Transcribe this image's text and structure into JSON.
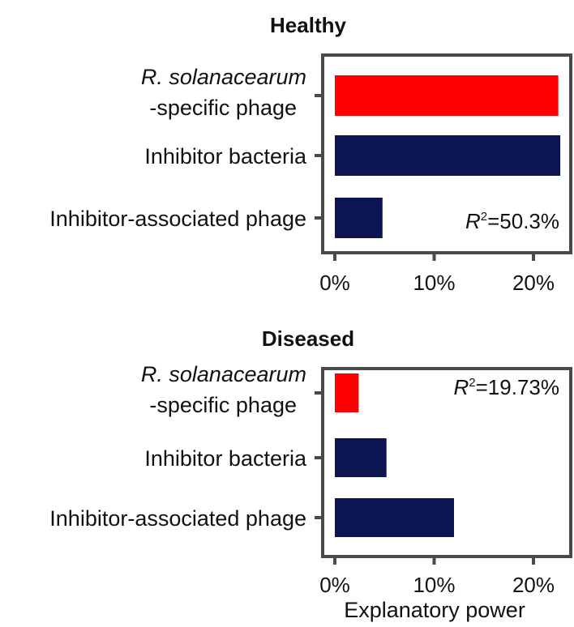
{
  "chart_data": [
    {
      "type": "bar",
      "orientation": "horizontal",
      "title": "Healthy",
      "categories": [
        {
          "line1": "R. solanacearum",
          "line2": "-specific phage",
          "italic_line1": true
        },
        {
          "line1": "Inhibitor bacteria",
          "line2": "",
          "italic_line1": false
        },
        {
          "line1": "Inhibitor-associated phage",
          "line2": "",
          "italic_line1": false
        }
      ],
      "values": [
        22.5,
        22.7,
        4.8
      ],
      "colors": [
        "#ff0000",
        "#0d1452",
        "#0d1452"
      ],
      "xlim": [
        0,
        23.5
      ],
      "xticks": [
        0,
        10,
        20
      ],
      "xtick_labels": [
        "0%",
        "10%",
        "20%"
      ],
      "annotation": {
        "r_text": "R",
        "sup": "2",
        "value_text": "=50.3%",
        "placement": "bottom-right"
      },
      "xlabel": ""
    },
    {
      "type": "bar",
      "orientation": "horizontal",
      "title": "Diseased",
      "categories": [
        {
          "line1": "R. solanacearum",
          "line2": "-specific phage",
          "italic_line1": true
        },
        {
          "line1": "Inhibitor bacteria",
          "line2": "",
          "italic_line1": false
        },
        {
          "line1": "Inhibitor-associated phage",
          "line2": "",
          "italic_line1": false
        }
      ],
      "values": [
        2.4,
        5.2,
        12.0
      ],
      "colors": [
        "#ff0000",
        "#0d1452",
        "#0d1452"
      ],
      "xlim": [
        0,
        23.5
      ],
      "xticks": [
        0,
        10,
        20
      ],
      "xtick_labels": [
        "0%",
        "10%",
        "20%"
      ],
      "annotation": {
        "r_text": "R",
        "sup": "2",
        "value_text": "=19.73%",
        "placement": "top-right"
      },
      "xlabel": "Explanatory power"
    }
  ]
}
